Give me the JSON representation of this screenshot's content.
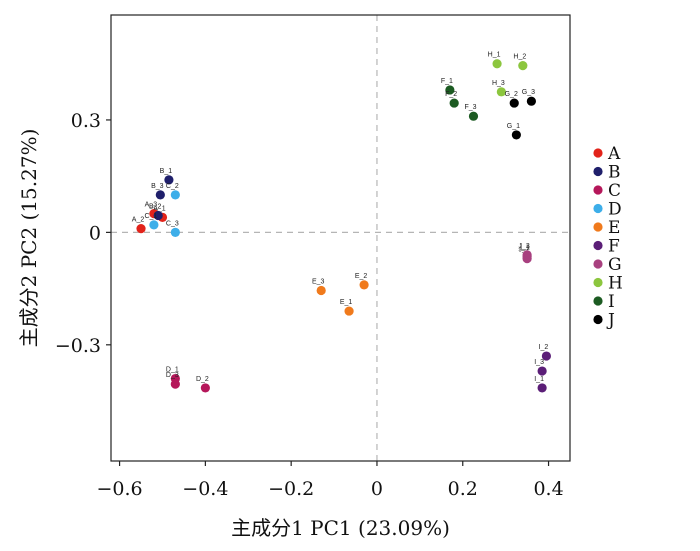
{
  "chart_data": {
    "type": "scatter",
    "title": "",
    "xlabel": "主成分1 PC1 (23.09%)",
    "ylabel": "主成分2 PC2 (15.27%)",
    "xlim": [
      -0.62,
      0.45
    ],
    "ylim": [
      -0.61,
      0.58
    ],
    "x_ticks": [
      -0.6,
      -0.4,
      -0.2,
      0,
      0.2,
      0.4
    ],
    "x_tick_labels": [
      "−0.6",
      "−0.4",
      "−0.2",
      "0",
      "0.2",
      "0.4"
    ],
    "y_ticks": [
      -0.3,
      0,
      0.3
    ],
    "y_tick_labels": [
      "−0.3",
      "0",
      "0.3"
    ],
    "reference_lines": {
      "x": 0,
      "y": 0,
      "style": "dashed",
      "color": "#b5b5b5"
    },
    "grid": false,
    "legend_position": "right",
    "series": [
      {
        "name": "A",
        "color": "#e2231a",
        "points": [
          {
            "label": "A_1",
            "x": -0.5,
            "y": 0.04
          },
          {
            "label": "A_2",
            "x": -0.55,
            "y": 0.01
          },
          {
            "label": "A_3",
            "x": -0.52,
            "y": 0.05
          }
        ]
      },
      {
        "name": "B",
        "color": "#1f1f6b",
        "points": [
          {
            "label": "B_1",
            "x": -0.485,
            "y": 0.14
          },
          {
            "label": "B_2",
            "x": -0.51,
            "y": 0.045
          },
          {
            "label": "B_3",
            "x": -0.505,
            "y": 0.1
          }
        ]
      },
      {
        "name": "C",
        "color": "#b5175a",
        "points": [
          {
            "label": "D_1",
            "x": -0.47,
            "y": -0.39
          },
          {
            "label": "D_3",
            "x": -0.47,
            "y": -0.405
          },
          {
            "label": "D_2",
            "x": -0.4,
            "y": -0.415
          }
        ]
      },
      {
        "name": "D",
        "color": "#3daee9",
        "points": [
          {
            "label": "C_1",
            "x": -0.52,
            "y": 0.02
          },
          {
            "label": "C_2",
            "x": -0.47,
            "y": 0.1
          },
          {
            "label": "C_3",
            "x": -0.47,
            "y": 0.0
          }
        ]
      },
      {
        "name": "E",
        "color": "#f07a1c",
        "points": [
          {
            "label": "E_1",
            "x": -0.065,
            "y": -0.21
          },
          {
            "label": "E_2",
            "x": -0.03,
            "y": -0.14
          },
          {
            "label": "E_3",
            "x": -0.13,
            "y": -0.155
          }
        ]
      },
      {
        "name": "F",
        "color": "#5b1e77",
        "points": [
          {
            "label": "I_1",
            "x": 0.385,
            "y": -0.415
          },
          {
            "label": "I_2",
            "x": 0.395,
            "y": -0.33
          },
          {
            "label": "I_3",
            "x": 0.385,
            "y": -0.37
          }
        ]
      },
      {
        "name": "G",
        "color": "#a8407f",
        "points": [
          {
            "label": "J_1",
            "x": 0.35,
            "y": -0.065
          },
          {
            "label": "J_2",
            "x": 0.35,
            "y": -0.07
          },
          {
            "label": "J_3",
            "x": 0.35,
            "y": -0.06
          }
        ]
      },
      {
        "name": "H",
        "color": "#8cc63e",
        "points": [
          {
            "label": "H_1",
            "x": 0.28,
            "y": 0.45
          },
          {
            "label": "H_2",
            "x": 0.34,
            "y": 0.445
          },
          {
            "label": "H_3",
            "x": 0.29,
            "y": 0.375
          }
        ]
      },
      {
        "name": "I",
        "color": "#1c5b22",
        "points": [
          {
            "label": "F_1",
            "x": 0.17,
            "y": 0.38
          },
          {
            "label": "F_2",
            "x": 0.18,
            "y": 0.345
          },
          {
            "label": "F_3",
            "x": 0.225,
            "y": 0.31
          }
        ]
      },
      {
        "name": "J",
        "color": "#000000",
        "points": [
          {
            "label": "G_1",
            "x": 0.325,
            "y": 0.26
          },
          {
            "label": "G_2",
            "x": 0.32,
            "y": 0.345
          },
          {
            "label": "G_3",
            "x": 0.36,
            "y": 0.35
          }
        ]
      }
    ]
  }
}
